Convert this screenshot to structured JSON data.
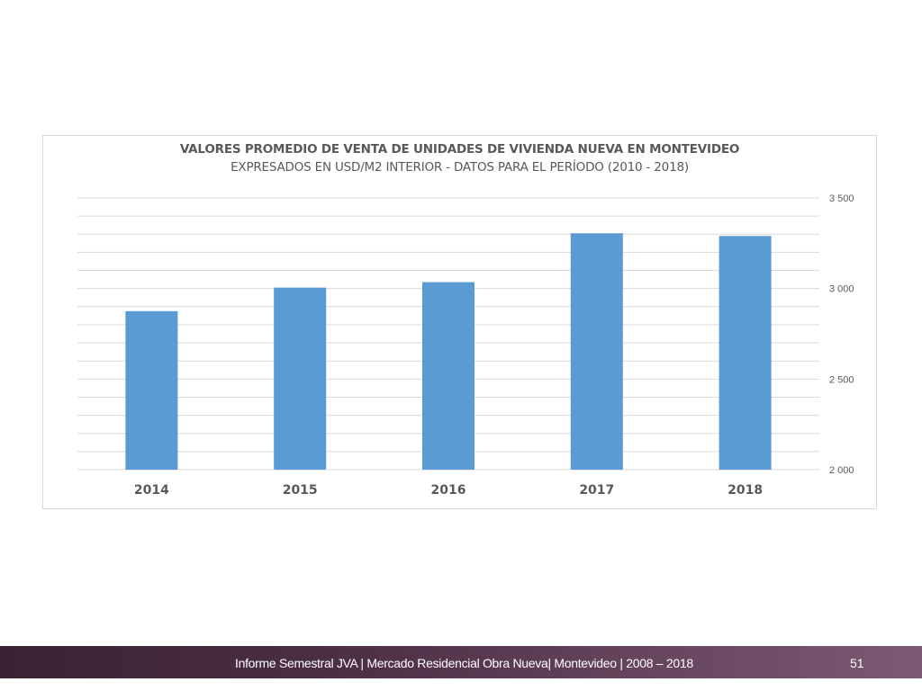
{
  "chart_data": {
    "type": "bar",
    "title": "VALORES PROMEDIO DE VENTA DE UNIDADES DE VIVIENDA NUEVA EN MONTEVIDEO",
    "subtitle": "EXPRESADOS EN USD/M2 INTERIOR - DATOS PARA EL  PERÍODO (2010 - 2018)",
    "categories": [
      "2014",
      "2015",
      "2016",
      "2017",
      "2018"
    ],
    "values": [
      2875,
      3005,
      3035,
      3305,
      3290
    ],
    "ylim": [
      2000,
      3500
    ],
    "yticks": [
      2000,
      2500,
      3000,
      3500
    ],
    "ytick_labels": [
      "2 000",
      "2 500",
      "3 000",
      "3 500"
    ],
    "minor_step": 100,
    "bar_color": "#5b9bd5",
    "grid_color": "#d9d9d9",
    "y_axis_position": "right",
    "xlabel": "",
    "ylabel": ""
  },
  "footer": {
    "text": "Informe Semestral JVA | Mercado Residencial Obra Nueva| Montevideo | 2008 – 2018",
    "page_number": "51"
  }
}
